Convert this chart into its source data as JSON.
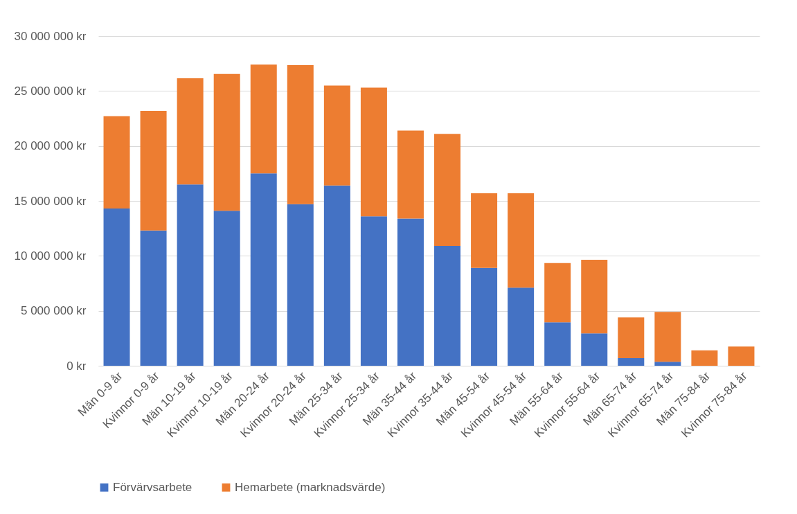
{
  "chart_data": {
    "type": "bar",
    "stacked": true,
    "categories": [
      "Män 0-9 år",
      "Kvinnor 0-9 år",
      "Män 10-19 år",
      "Kvinnor 10-19 år",
      "Män 20-24 år",
      "Kvinnor 20-24 år",
      "Män 25-34 år",
      "Kvinnor 25-34 år",
      "Män 35-44 år",
      "Kvinnor 35-44 år",
      "Män 45-54 år",
      "Kvinnor 45-54 år",
      "Män 55-64 år",
      "Kvinnor 55-64 år",
      "Män 65-74 år",
      "Kvinnor 65-74 år",
      "Män 75-84 år",
      "Kvinnor 75-84 år"
    ],
    "series": [
      {
        "name": "Förvärvsarbete",
        "color": "#4472c4",
        "values": [
          14300000,
          12300000,
          16500000,
          14100000,
          17500000,
          14700000,
          16400000,
          13600000,
          13400000,
          10900000,
          8900000,
          7100000,
          3950000,
          2950000,
          700000,
          360000,
          0,
          0
        ]
      },
      {
        "name": "Hemarbete (marknadsvärde)",
        "color": "#ed7d31",
        "values": [
          8400000,
          10900000,
          9650000,
          12450000,
          9900000,
          12650000,
          9100000,
          11700000,
          8000000,
          10200000,
          6800000,
          8600000,
          5400000,
          6700000,
          3700000,
          4540000,
          1400000,
          1750000
        ]
      }
    ],
    "ylim": [
      0,
      30000000
    ],
    "yticks": [
      {
        "value": 0,
        "label": "0 kr"
      },
      {
        "value": 5000000,
        "label": "5 000 000 kr"
      },
      {
        "value": 10000000,
        "label": "10 000 000 kr"
      },
      {
        "value": 15000000,
        "label": "15 000 000 kr"
      },
      {
        "value": 20000000,
        "label": "20 000 000 kr"
      },
      {
        "value": 25000000,
        "label": "25 000 000 kr"
      },
      {
        "value": 30000000,
        "label": "30 000 000 kr"
      }
    ],
    "grid": "y",
    "legend": "bottom"
  }
}
